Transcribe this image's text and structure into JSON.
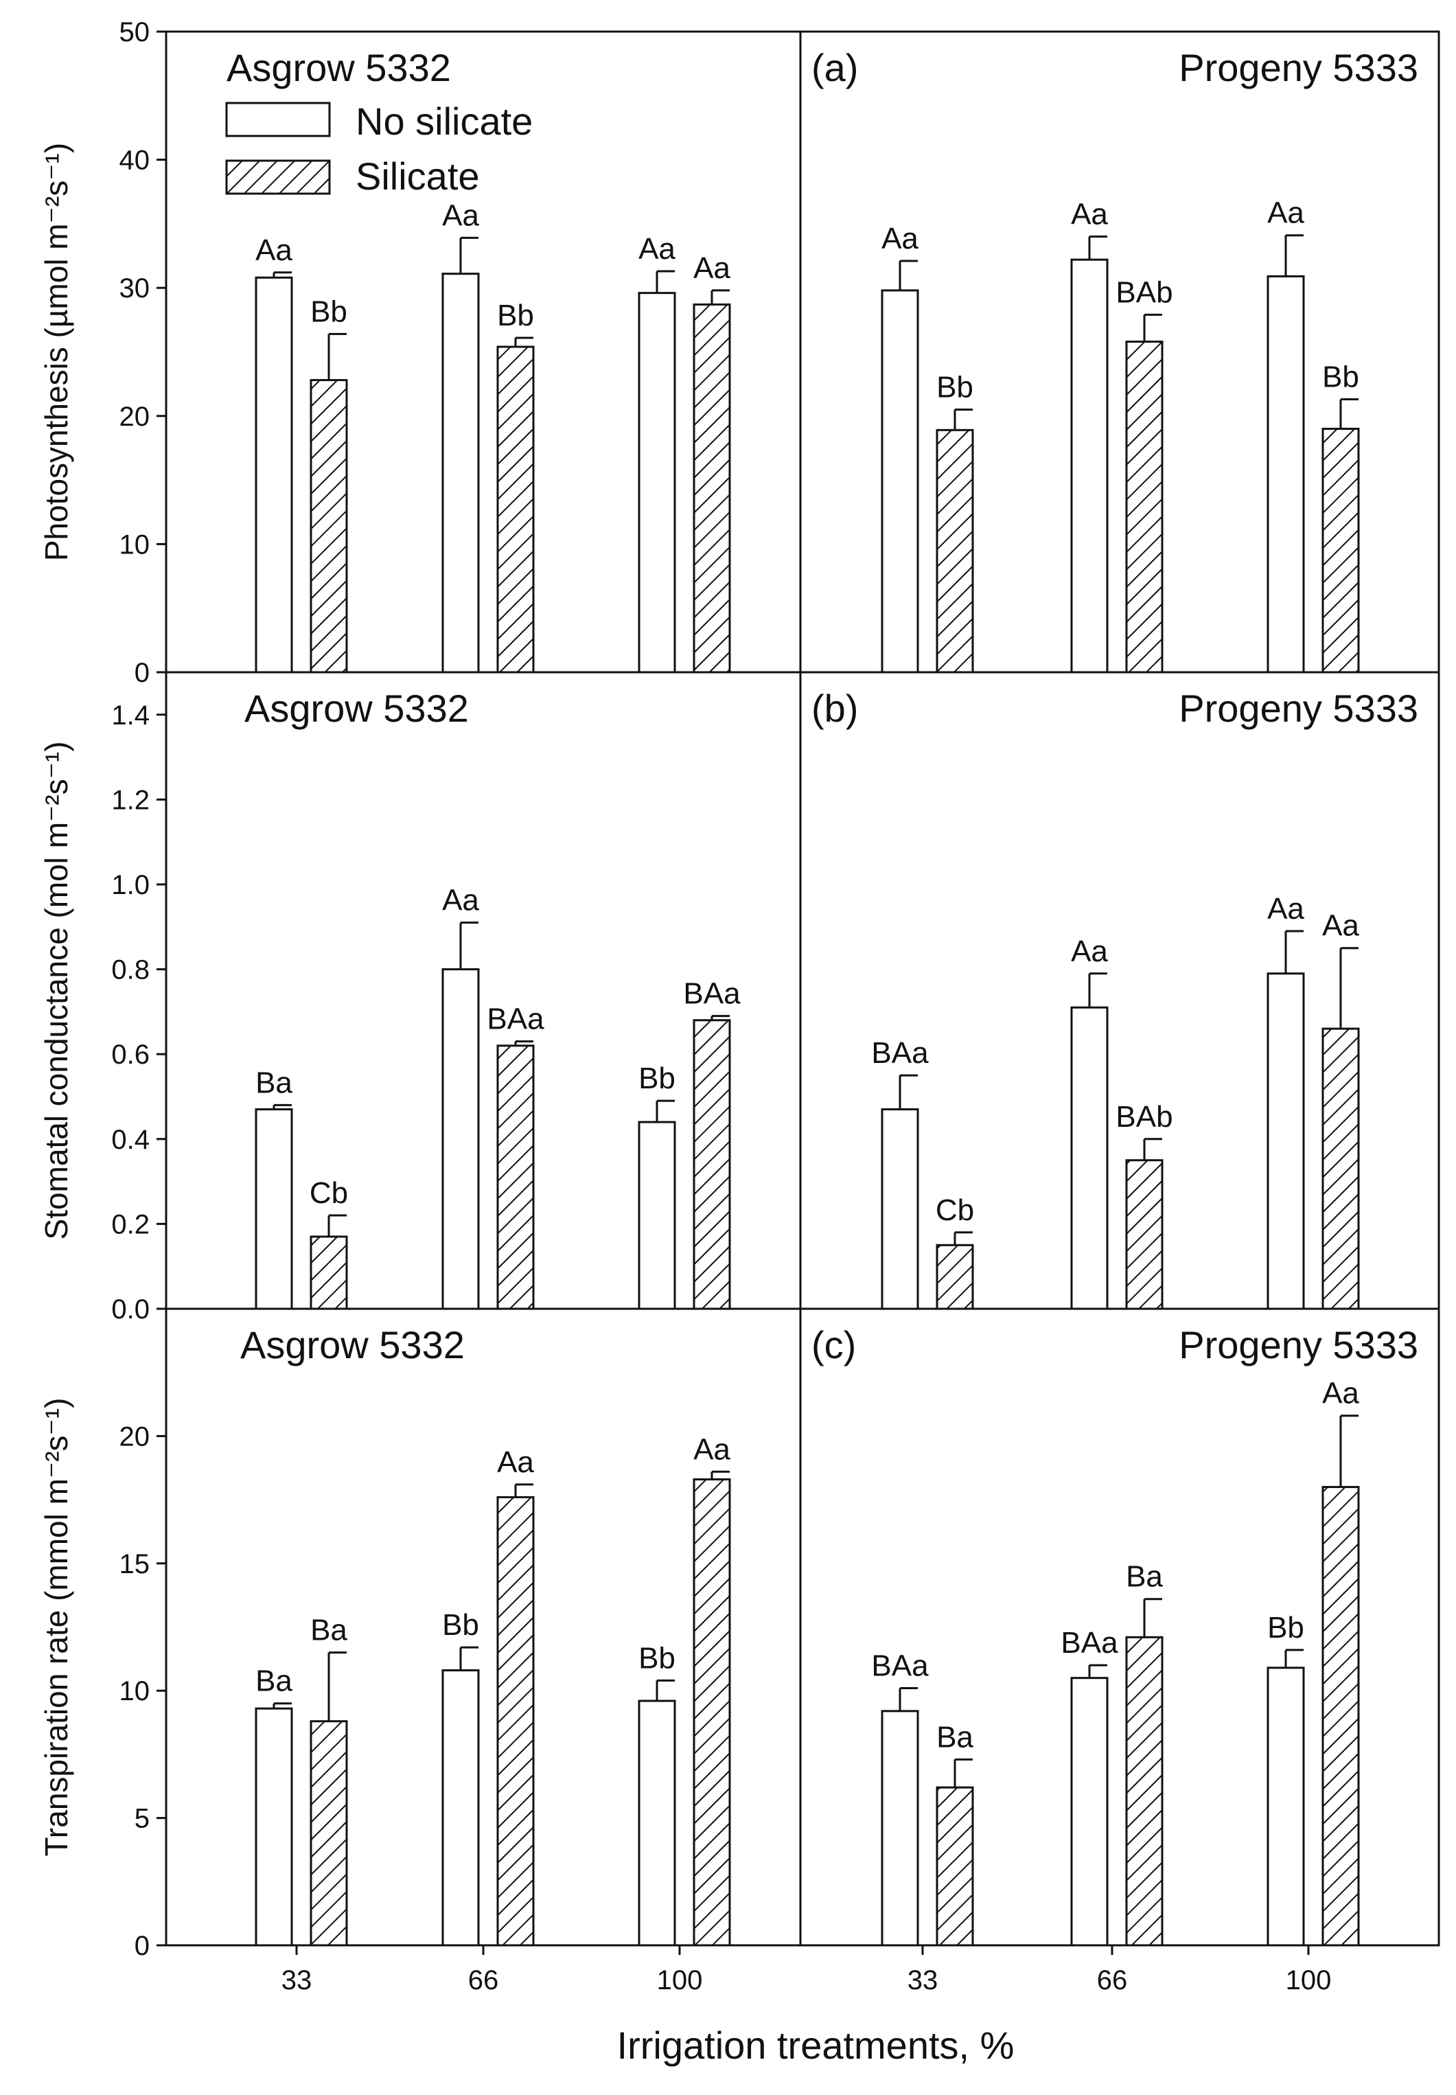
{
  "figure": {
    "xlabel": "Irrigation treatments, %",
    "legend": {
      "no_silicate": "No silicate",
      "silicate": "Silicate"
    }
  },
  "chart_data": [
    {
      "type": "bar",
      "row": 0,
      "ylabel": "Photosynthesis (µmol m⁻²s⁻¹)",
      "ylim": [
        0,
        50
      ],
      "yticks": [
        0,
        10,
        20,
        30,
        40,
        50
      ],
      "ytick_labels": [
        "0",
        "10",
        "20",
        "30",
        "40",
        "50"
      ],
      "panels": [
        {
          "title": "Asgrow 5332",
          "label": "",
          "categories": [
            "33",
            "66",
            "100"
          ],
          "series": [
            {
              "name": "No silicate",
              "values": [
                30.8,
                31.1,
                29.6
              ],
              "errors": [
                0.4,
                2.8,
                1.7
              ],
              "letters": [
                "Aa",
                "Aa",
                "Aa"
              ]
            },
            {
              "name": "Silicate",
              "values": [
                22.8,
                25.4,
                28.7
              ],
              "errors": [
                3.6,
                0.7,
                1.1
              ],
              "letters": [
                "Bb",
                "Bb",
                "Aa"
              ]
            }
          ]
        },
        {
          "title": "Progeny 5333",
          "label": "(a)",
          "categories": [
            "33",
            "66",
            "100"
          ],
          "series": [
            {
              "name": "No silicate",
              "values": [
                29.8,
                32.2,
                30.9
              ],
              "errors": [
                2.3,
                1.8,
                3.2
              ],
              "letters": [
                "Aa",
                "Aa",
                "Aa"
              ]
            },
            {
              "name": "Silicate",
              "values": [
                18.9,
                25.8,
                19.0
              ],
              "errors": [
                1.6,
                2.1,
                2.3
              ],
              "letters": [
                "Bb",
                "BAb",
                "Bb"
              ]
            }
          ]
        }
      ]
    },
    {
      "type": "bar",
      "row": 1,
      "ylabel": "Stomatal conductance (mol m⁻²s⁻¹)",
      "ylim": [
        0,
        1.5
      ],
      "yticks": [
        0,
        0.2,
        0.4,
        0.6,
        0.8,
        1.0,
        1.2,
        1.4
      ],
      "ytick_labels": [
        "0.0",
        "0.2",
        "0.4",
        "0.6",
        "0.8",
        "1.0",
        "1.2",
        "1.4"
      ],
      "panels": [
        {
          "title": "Asgrow 5332",
          "label": "",
          "categories": [
            "33",
            "66",
            "100"
          ],
          "series": [
            {
              "name": "No silicate",
              "values": [
                0.47,
                0.8,
                0.44
              ],
              "errors": [
                0.01,
                0.11,
                0.05
              ],
              "letters": [
                "Ba",
                "Aa",
                "Bb"
              ]
            },
            {
              "name": "Silicate",
              "values": [
                0.17,
                0.62,
                0.68
              ],
              "errors": [
                0.05,
                0.01,
                0.01
              ],
              "letters": [
                "Cb",
                "BAa",
                "BAa"
              ]
            }
          ]
        },
        {
          "title": "Progeny 5333",
          "label": "(b)",
          "categories": [
            "33",
            "66",
            "100"
          ],
          "series": [
            {
              "name": "No silicate",
              "values": [
                0.47,
                0.71,
                0.79
              ],
              "errors": [
                0.08,
                0.08,
                0.1
              ],
              "letters": [
                "BAa",
                "Aa",
                "Aa"
              ]
            },
            {
              "name": "Silicate",
              "values": [
                0.15,
                0.35,
                0.66
              ],
              "errors": [
                0.03,
                0.05,
                0.19
              ],
              "letters": [
                "Cb",
                "BAb",
                "Aa"
              ]
            }
          ]
        }
      ]
    },
    {
      "type": "bar",
      "row": 2,
      "ylabel": "Transpiration rate (mmol m⁻²s⁻¹)",
      "ylim": [
        0,
        25
      ],
      "yticks": [
        0,
        5,
        10,
        15,
        20
      ],
      "ytick_labels": [
        "0",
        "5",
        "10",
        "15",
        "20"
      ],
      "panels": [
        {
          "title": "Asgrow 5332",
          "label": "",
          "categories": [
            "33",
            "66",
            "100"
          ],
          "series": [
            {
              "name": "No silicate",
              "values": [
                9.3,
                10.8,
                9.6
              ],
              "errors": [
                0.2,
                0.9,
                0.8
              ],
              "letters": [
                "Ba",
                "Bb",
                "Bb"
              ]
            },
            {
              "name": "Silicate",
              "values": [
                8.8,
                17.6,
                18.3
              ],
              "errors": [
                2.7,
                0.5,
                0.3
              ],
              "letters": [
                "Ba",
                "Aa",
                "Aa"
              ]
            }
          ]
        },
        {
          "title": "Progeny 5333",
          "label": "(c)",
          "categories": [
            "33",
            "66",
            "100"
          ],
          "series": [
            {
              "name": "No silicate",
              "values": [
                9.2,
                10.5,
                10.9
              ],
              "errors": [
                0.9,
                0.5,
                0.7
              ],
              "letters": [
                "BAa",
                "BAa",
                "Bb"
              ]
            },
            {
              "name": "Silicate",
              "values": [
                6.2,
                12.1,
                18.0
              ],
              "errors": [
                1.1,
                1.5,
                2.8
              ],
              "letters": [
                "Ba",
                "Ba",
                "Aa"
              ]
            }
          ]
        }
      ]
    }
  ]
}
